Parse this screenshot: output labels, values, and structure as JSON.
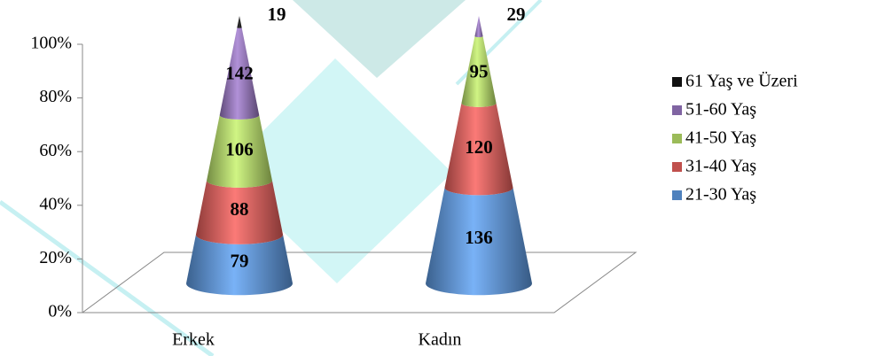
{
  "chart_data": {
    "type": "cone_stacked",
    "stack": "percent",
    "categories": [
      "Erkek",
      "Kadın"
    ],
    "series": [
      {
        "name": "21-30 Yaş",
        "color": "#4f81bd",
        "values": [
          79,
          136
        ]
      },
      {
        "name": "31-40 Yaş",
        "color": "#c0504d",
        "values": [
          88,
          120
        ]
      },
      {
        "name": "41-50 Yaş",
        "color": "#9bbb59",
        "values": [
          106,
          95
        ]
      },
      {
        "name": "51-60 Yaş",
        "color": "#8064a2",
        "values": [
          142,
          29
        ]
      },
      {
        "name": "61 Yaş ve Üzeri",
        "color": "#111111",
        "values": [
          19,
          null
        ]
      }
    ],
    "ylim": [
      0,
      100
    ],
    "yticks": [
      {
        "value": 0,
        "label": "0%"
      },
      {
        "value": 20,
        "label": "20%"
      },
      {
        "value": 40,
        "label": "40%"
      },
      {
        "value": 60,
        "label": "60%"
      },
      {
        "value": 80,
        "label": "80%"
      },
      {
        "value": 100,
        "label": "100%"
      }
    ],
    "legend": "right"
  }
}
